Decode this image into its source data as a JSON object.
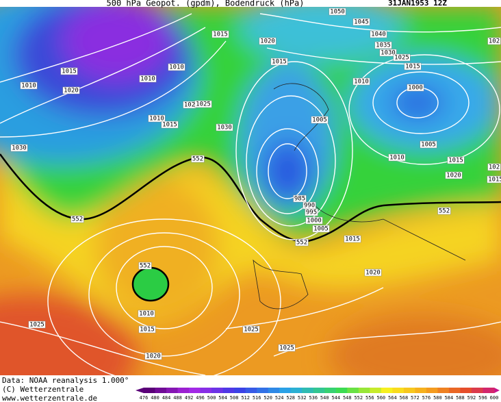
{
  "header": {
    "title": "500 hPa Geopot. (gpdm), Bodendruck (hPa)",
    "date": "31JAN1953 12Z"
  },
  "map_labels": [
    "1050",
    "1045",
    "1040",
    "1035",
    "1030",
    "1025",
    "1015",
    "102",
    "1015",
    "1020",
    "1015",
    "1010",
    "1015",
    "1010",
    "1020",
    "1010",
    "102",
    "1025",
    "1010",
    "1015",
    "1030",
    "1030",
    "1010",
    "1000",
    "1005",
    "1005",
    "1010",
    "1015",
    "102",
    "1020",
    "1015",
    "552",
    "552",
    "552",
    "552",
    "985",
    "990",
    "995",
    "1000",
    "1005",
    "1015",
    "1020",
    "552",
    "1010",
    "1015",
    "1025",
    "1025",
    "1025",
    "1020"
  ],
  "footer": {
    "source": "Data: NOAA reanalysis 1.000°",
    "copyright": "(C) Wetterzentrale",
    "url": "www.wetterzentrale.de"
  },
  "colorbar": {
    "ticks": [
      476,
      480,
      484,
      488,
      492,
      496,
      500,
      504,
      508,
      512,
      516,
      520,
      524,
      528,
      532,
      536,
      540,
      544,
      548,
      552,
      556,
      560,
      564,
      568,
      572,
      576,
      580,
      584,
      588,
      592,
      596,
      600
    ]
  }
}
